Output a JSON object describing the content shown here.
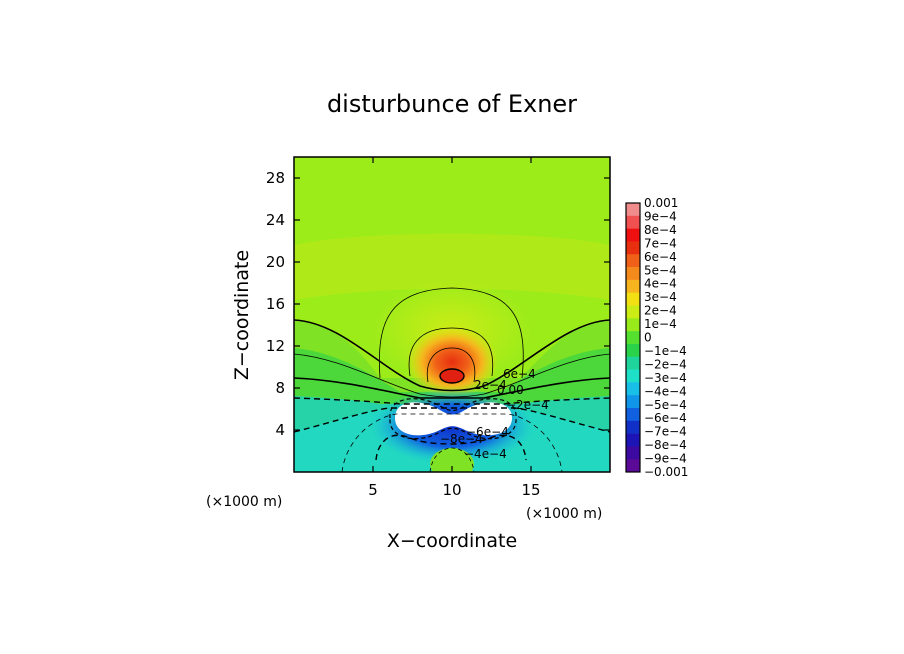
{
  "chart_data": {
    "type": "heatmap",
    "title": "disturbunce of Exner",
    "xlabel": "X−coordinate",
    "ylabel": "Z−coordinate",
    "x_unit_left": "(×1000 m)",
    "x_unit_right": "(×1000 m)",
    "xlim": [
      0,
      20
    ],
    "ylim": [
      0,
      30
    ],
    "x_ticks": [
      {
        "value": 5,
        "label": "5"
      },
      {
        "value": 10,
        "label": "10"
      },
      {
        "value": 15,
        "label": "15"
      }
    ],
    "y_ticks": [
      {
        "value": 4,
        "label": "4"
      },
      {
        "value": 8,
        "label": "8"
      },
      {
        "value": 12,
        "label": "12"
      },
      {
        "value": 16,
        "label": "16"
      },
      {
        "value": 20,
        "label": "20"
      },
      {
        "value": 24,
        "label": "24"
      },
      {
        "value": 28,
        "label": "28"
      }
    ],
    "colorbar": {
      "min": -0.001,
      "max": 0.001,
      "labels": [
        "0.001",
        "9e−4",
        "8e−4",
        "7e−4",
        "6e−4",
        "5e−4",
        "4e−4",
        "3e−4",
        "2e−4",
        "1e−4",
        "0",
        "−1e−4",
        "−2e−4",
        "−3e−4",
        "−4e−4",
        "−5e−4",
        "−6e−4",
        "−7e−4",
        "−8e−4",
        "−9e−4",
        "−0.001"
      ],
      "colors": [
        "#f08c8c",
        "#f05050",
        "#ee1010",
        "#e83010",
        "#f06018",
        "#f58a1c",
        "#f6b41e",
        "#f3e014",
        "#ccec16",
        "#98ea1a",
        "#55e030",
        "#2ad24a",
        "#1ed49a",
        "#1ee0c8",
        "#18c0e8",
        "#1096e8",
        "#1060e0",
        "#1030c8",
        "#1c14b4",
        "#3c0aa0",
        "#5a0a96"
      ]
    },
    "contour_labels": [
      "6e−4",
      "2e−4",
      "0.00",
      "−2e−4",
      "−6e−4",
      "−8e−4",
      "−4e−4"
    ],
    "features": {
      "positive_max": {
        "x": 10,
        "z": 9,
        "approx_value": 0.0008
      },
      "negative_min_region": {
        "x": 10,
        "z": 5,
        "approx_value": -0.001
      }
    }
  }
}
